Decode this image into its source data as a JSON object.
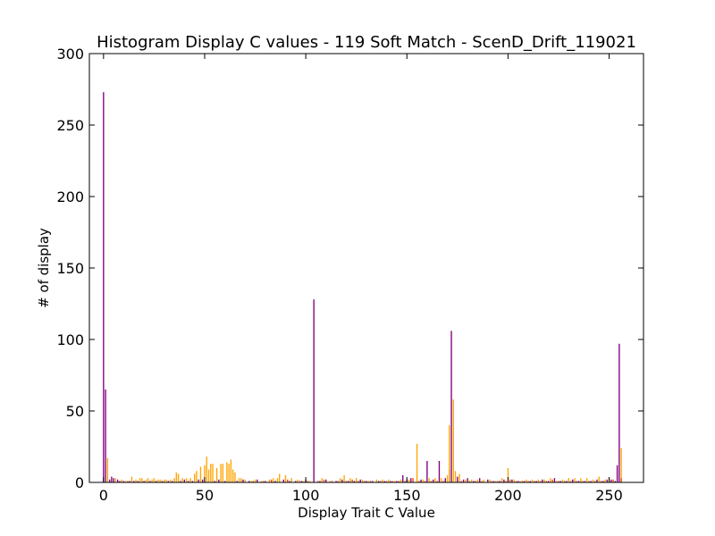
{
  "chart_data": {
    "type": "bar",
    "title": "Histogram Display C values - 119 Soft Match - ScenD_Drift_119021",
    "xlabel": "Display Trait C Value",
    "ylabel": "# of display",
    "xlim": [
      -7,
      267
    ],
    "ylim": [
      0,
      300
    ],
    "xticks": [
      0,
      50,
      100,
      150,
      200,
      250
    ],
    "yticks": [
      0,
      50,
      100,
      150,
      200,
      250,
      300
    ],
    "grid": false,
    "legend": "none",
    "colors": {
      "series_a": "#800080",
      "series_b": "#FFA500",
      "series_c": "#FF4500"
    },
    "series": [
      {
        "color": "#800080",
        "points": [
          [
            0,
            273
          ],
          [
            1,
            65
          ],
          [
            3,
            2
          ],
          [
            4,
            4
          ],
          [
            5,
            3
          ],
          [
            7,
            2
          ],
          [
            8,
            1
          ],
          [
            10,
            1
          ],
          [
            13,
            1
          ],
          [
            15,
            1
          ],
          [
            17,
            1
          ],
          [
            20,
            1
          ],
          [
            23,
            1
          ],
          [
            26,
            1
          ],
          [
            29,
            1
          ],
          [
            32,
            1
          ],
          [
            34,
            1
          ],
          [
            38,
            1
          ],
          [
            40,
            2
          ],
          [
            42,
            1
          ],
          [
            44,
            1
          ],
          [
            47,
            2
          ],
          [
            49,
            2
          ],
          [
            55,
            1
          ],
          [
            57,
            2
          ],
          [
            60,
            1
          ],
          [
            66,
            1
          ],
          [
            69,
            2
          ],
          [
            72,
            1
          ],
          [
            76,
            2
          ],
          [
            80,
            1
          ],
          [
            85,
            1
          ],
          [
            89,
            2
          ],
          [
            92,
            1
          ],
          [
            95,
            1
          ],
          [
            98,
            1
          ],
          [
            100,
            2
          ],
          [
            104,
            128
          ],
          [
            107,
            1
          ],
          [
            110,
            2
          ],
          [
            115,
            1
          ],
          [
            118,
            2
          ],
          [
            121,
            1
          ],
          [
            124,
            1
          ],
          [
            127,
            2
          ],
          [
            130,
            1
          ],
          [
            133,
            1
          ],
          [
            136,
            1
          ],
          [
            139,
            1
          ],
          [
            142,
            1
          ],
          [
            145,
            1
          ],
          [
            148,
            5
          ],
          [
            150,
            2
          ],
          [
            152,
            3
          ],
          [
            157,
            2
          ],
          [
            160,
            15
          ],
          [
            163,
            2
          ],
          [
            166,
            15
          ],
          [
            169,
            3
          ],
          [
            171,
            9
          ],
          [
            172,
            106
          ],
          [
            175,
            4
          ],
          [
            178,
            2
          ],
          [
            180,
            3
          ],
          [
            183,
            1
          ],
          [
            186,
            3
          ],
          [
            190,
            2
          ],
          [
            193,
            1
          ],
          [
            196,
            1
          ],
          [
            198,
            2
          ],
          [
            202,
            2
          ],
          [
            205,
            1
          ],
          [
            208,
            1
          ],
          [
            211,
            1
          ],
          [
            214,
            1
          ],
          [
            217,
            2
          ],
          [
            220,
            1
          ],
          [
            223,
            3
          ],
          [
            226,
            1
          ],
          [
            229,
            1
          ],
          [
            232,
            2
          ],
          [
            235,
            1
          ],
          [
            238,
            1
          ],
          [
            241,
            1
          ],
          [
            244,
            2
          ],
          [
            247,
            1
          ],
          [
            249,
            2
          ],
          [
            251,
            2
          ],
          [
            253,
            1
          ],
          [
            254,
            12
          ],
          [
            255,
            97
          ]
        ]
      },
      {
        "color": "#FFA500",
        "points": [
          [
            2,
            17
          ],
          [
            6,
            3
          ],
          [
            9,
            2
          ],
          [
            11,
            1
          ],
          [
            14,
            4
          ],
          [
            16,
            2
          ],
          [
            18,
            3
          ],
          [
            19,
            3
          ],
          [
            21,
            2
          ],
          [
            22,
            3
          ],
          [
            24,
            2
          ],
          [
            25,
            3
          ],
          [
            27,
            2
          ],
          [
            28,
            2
          ],
          [
            30,
            2
          ],
          [
            31,
            2
          ],
          [
            33,
            2
          ],
          [
            35,
            3
          ],
          [
            36,
            7
          ],
          [
            37,
            6
          ],
          [
            39,
            3
          ],
          [
            41,
            3
          ],
          [
            43,
            3
          ],
          [
            45,
            6
          ],
          [
            46,
            8
          ],
          [
            48,
            11
          ],
          [
            50,
            12
          ],
          [
            51,
            18
          ],
          [
            52,
            9
          ],
          [
            53,
            13
          ],
          [
            54,
            13
          ],
          [
            56,
            10
          ],
          [
            58,
            13
          ],
          [
            59,
            13
          ],
          [
            61,
            14
          ],
          [
            62,
            13
          ],
          [
            63,
            16
          ],
          [
            64,
            9
          ],
          [
            65,
            7
          ],
          [
            67,
            3
          ],
          [
            68,
            3
          ],
          [
            70,
            2
          ],
          [
            73,
            1
          ],
          [
            75,
            2
          ],
          [
            78,
            1
          ],
          [
            82,
            2
          ],
          [
            84,
            3
          ],
          [
            86,
            3
          ],
          [
            87,
            6
          ],
          [
            90,
            5
          ],
          [
            93,
            3
          ],
          [
            96,
            2
          ],
          [
            99,
            1
          ],
          [
            102,
            1
          ],
          [
            108,
            3
          ],
          [
            112,
            1
          ],
          [
            117,
            3
          ],
          [
            119,
            5
          ],
          [
            122,
            3
          ],
          [
            125,
            3
          ],
          [
            128,
            2
          ],
          [
            131,
            1
          ],
          [
            135,
            2
          ],
          [
            138,
            2
          ],
          [
            141,
            2
          ],
          [
            144,
            1
          ],
          [
            147,
            2
          ],
          [
            151,
            2
          ],
          [
            155,
            27
          ],
          [
            158,
            2
          ],
          [
            161,
            3
          ],
          [
            164,
            3
          ],
          [
            167,
            3
          ],
          [
            170,
            5
          ],
          [
            171,
            40
          ],
          [
            173,
            58
          ],
          [
            174,
            8
          ],
          [
            176,
            6
          ],
          [
            179,
            2
          ],
          [
            182,
            2
          ],
          [
            185,
            2
          ],
          [
            188,
            2
          ],
          [
            191,
            2
          ],
          [
            194,
            1
          ],
          [
            197,
            3
          ],
          [
            200,
            10
          ],
          [
            203,
            2
          ],
          [
            206,
            1
          ],
          [
            209,
            2
          ],
          [
            212,
            2
          ],
          [
            215,
            2
          ],
          [
            218,
            2
          ],
          [
            221,
            3
          ],
          [
            224,
            1
          ],
          [
            227,
            2
          ],
          [
            230,
            3
          ],
          [
            233,
            3
          ],
          [
            236,
            3
          ],
          [
            239,
            3
          ],
          [
            242,
            2
          ],
          [
            245,
            4
          ],
          [
            248,
            2
          ],
          [
            250,
            3
          ],
          [
            256,
            24
          ]
        ]
      },
      {
        "color": "#FF4500",
        "points": [
          [
            12,
            1
          ],
          [
            74,
            1
          ],
          [
            79,
            1
          ],
          [
            83,
            2
          ],
          [
            91,
            2
          ],
          [
            97,
            1
          ],
          [
            101,
            1
          ],
          [
            106,
            1
          ],
          [
            109,
            2
          ],
          [
            113,
            1
          ],
          [
            116,
            1
          ],
          [
            120,
            1
          ],
          [
            123,
            2
          ],
          [
            126,
            1
          ],
          [
            129,
            1
          ],
          [
            132,
            1
          ],
          [
            137,
            1
          ],
          [
            140,
            1
          ],
          [
            143,
            1
          ],
          [
            146,
            1
          ],
          [
            149,
            1
          ],
          [
            153,
            3
          ],
          [
            156,
            1
          ],
          [
            159,
            1
          ],
          [
            162,
            1
          ],
          [
            165,
            1
          ],
          [
            168,
            1
          ],
          [
            177,
            1
          ],
          [
            181,
            1
          ],
          [
            184,
            1
          ],
          [
            187,
            1
          ],
          [
            192,
            1
          ],
          [
            195,
            1
          ],
          [
            199,
            1
          ],
          [
            201,
            2
          ],
          [
            204,
            1
          ],
          [
            207,
            1
          ],
          [
            210,
            1
          ],
          [
            213,
            1
          ],
          [
            216,
            1
          ],
          [
            219,
            1
          ],
          [
            222,
            2
          ],
          [
            225,
            1
          ],
          [
            228,
            1
          ],
          [
            231,
            1
          ],
          [
            234,
            1
          ],
          [
            237,
            1
          ],
          [
            240,
            1
          ],
          [
            243,
            1
          ],
          [
            246,
            1
          ],
          [
            252,
            2
          ],
          [
            256,
            3
          ]
        ]
      }
    ]
  }
}
